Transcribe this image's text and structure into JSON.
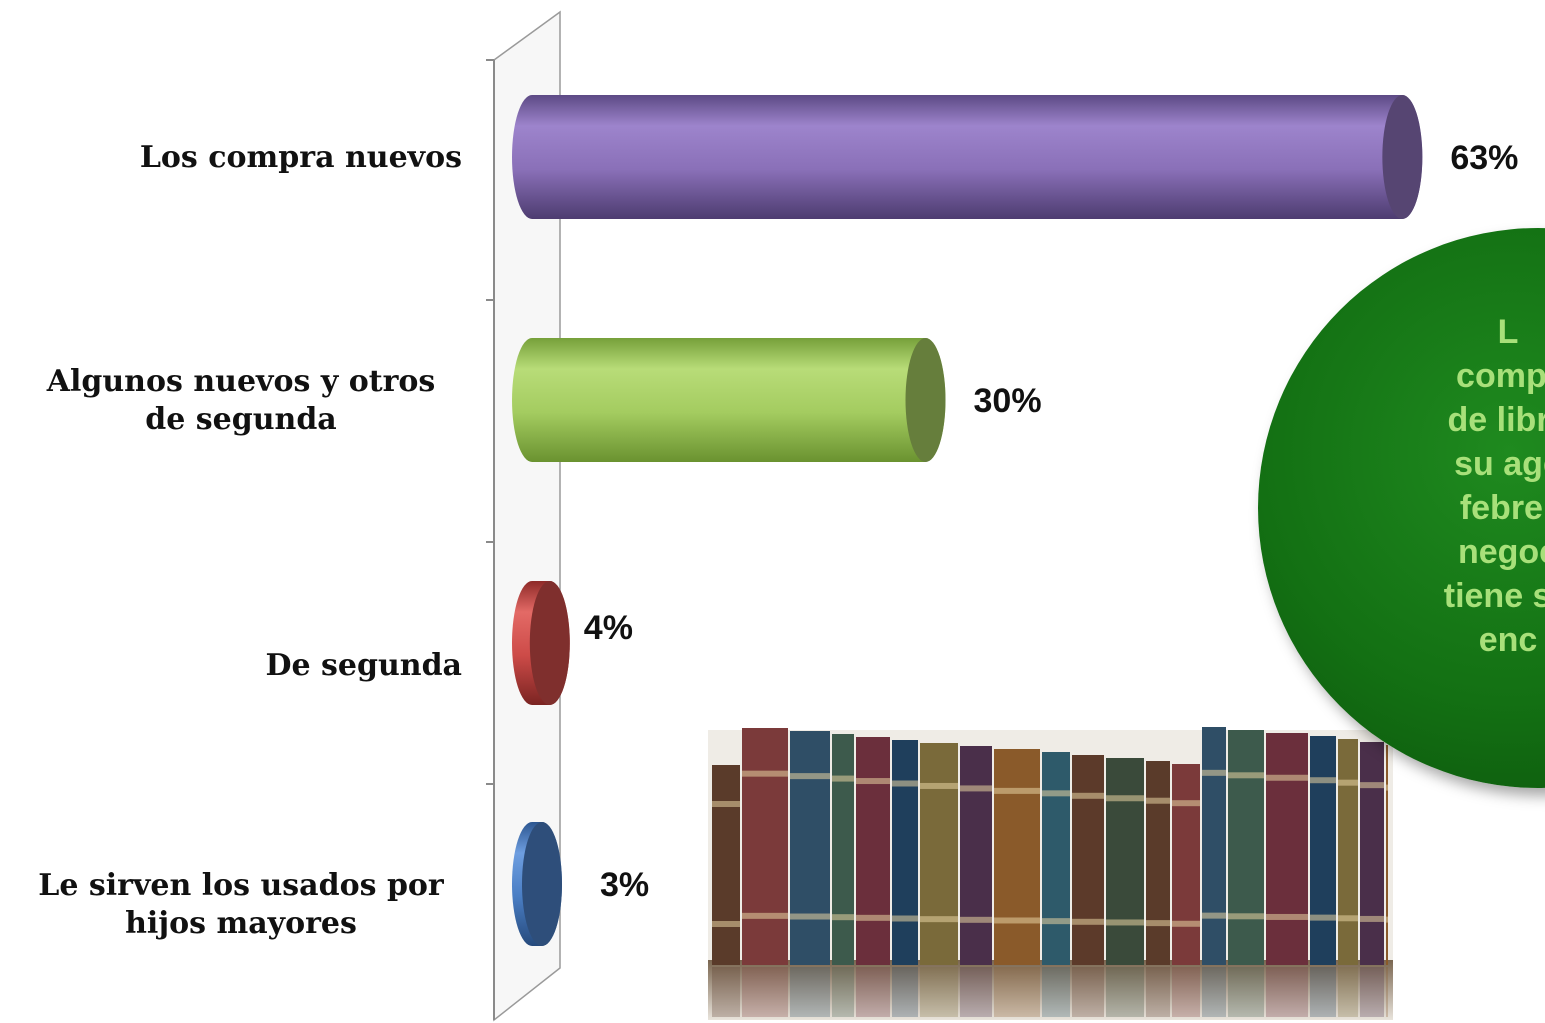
{
  "chart_data": {
    "type": "bar",
    "orientation": "horizontal",
    "style": "3d-cylinder",
    "categories": [
      [
        "Los compra nuevos"
      ],
      [
        "Algunos nuevos y otros",
        "de segunda"
      ],
      [
        "De segunda"
      ],
      [
        "Le sirven los usados por",
        "hijos mayores"
      ]
    ],
    "values": [
      63,
      30,
      4,
      3
    ],
    "value_labels": [
      "63%",
      "30%",
      "4%",
      "3%"
    ],
    "colors": [
      "#8a70b8",
      "#a4cc60",
      "#cd4b48",
      "#4a7ec4"
    ],
    "grid": false,
    "legend": "none"
  },
  "callout": {
    "lines": [
      "L",
      "compr",
      "de libre",
      "su age",
      "febrer",
      "negoc",
      "tiene su",
      "enc"
    ]
  },
  "image": {
    "name": "bookshelf-image"
  }
}
